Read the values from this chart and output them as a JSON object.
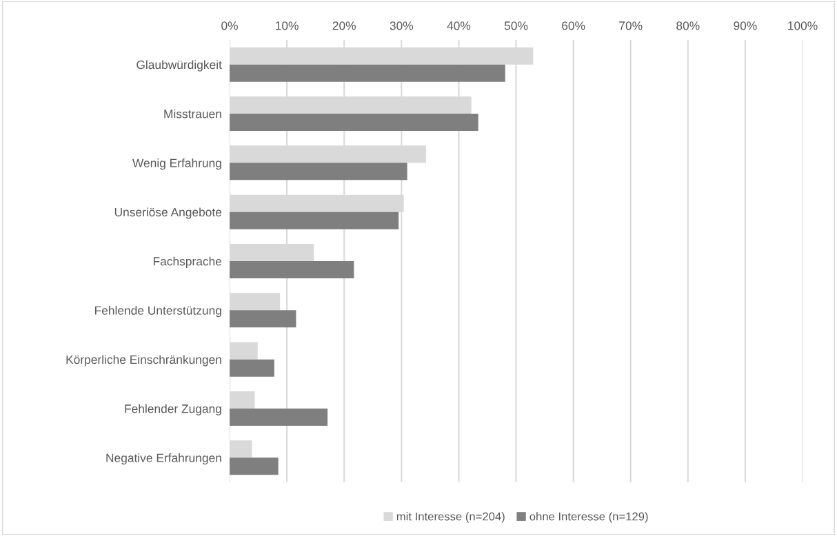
{
  "chart_data": {
    "type": "bar",
    "orientation": "horizontal",
    "categories": [
      "Glaubwürdigkeit",
      "Misstrauen",
      "Wenig Erfahrung",
      "Unseriöse Angebote",
      "Fachsprache",
      "Fehlende Unterstützung",
      "Körperliche Einschränkungen",
      "Fehlender Zugang",
      "Negative Erfahrungen"
    ],
    "series": [
      {
        "name": "mit Interesse (n=204)",
        "color": "#d9d9d9",
        "values": [
          53.0,
          42.2,
          34.3,
          30.4,
          14.7,
          8.8,
          4.9,
          4.4,
          3.9
        ]
      },
      {
        "name": "ohne Interesse (n=129)",
        "color": "#7f7f7f",
        "values": [
          48.1,
          43.4,
          31.0,
          29.5,
          21.7,
          11.6,
          7.8,
          17.1,
          8.5
        ]
      }
    ],
    "xlim": [
      0,
      100
    ],
    "xticks": [
      {
        "value": 0,
        "label": "0%"
      },
      {
        "value": 10,
        "label": "10%"
      },
      {
        "value": 20,
        "label": "20%"
      },
      {
        "value": 30,
        "label": "30%"
      },
      {
        "value": 40,
        "label": "40%"
      },
      {
        "value": 50,
        "label": "50%"
      },
      {
        "value": 60,
        "label": "60%"
      },
      {
        "value": 70,
        "label": "70%"
      },
      {
        "value": 80,
        "label": "80%"
      },
      {
        "value": 90,
        "label": "90%"
      },
      {
        "value": 100,
        "label": "100%"
      }
    ],
    "grid": "x",
    "legend": "bottom"
  }
}
